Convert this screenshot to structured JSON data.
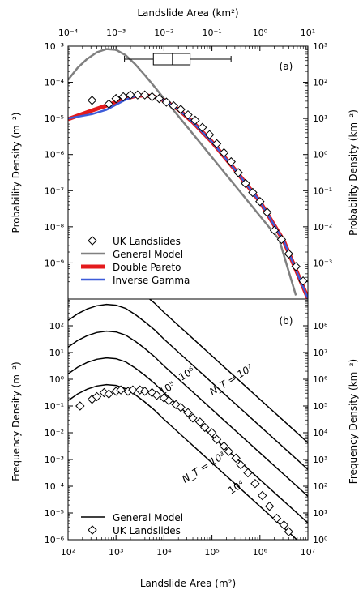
{
  "chart_data": [
    {
      "id": "a",
      "type": "line",
      "panel_label": "(a)",
      "xlabel_top": "Landslide Area (km²)",
      "ylabel_left": "Probability Density (m⁻²)",
      "ylabel_right": "Probability Density (km⁻²)",
      "x_log10_range": [
        2,
        7
      ],
      "y_log10_range": [
        -10,
        -3
      ],
      "x_top_log10_range": [
        -4,
        1
      ],
      "y_right_log10_range": [
        -4,
        3
      ],
      "x_ticks_top": [
        "10⁻⁴",
        "10⁻³",
        "10⁻²",
        "10⁻¹",
        "10⁰",
        "10¹"
      ],
      "y_ticks_left": [
        "10⁻⁹",
        "10⁻⁸",
        "10⁻⁷",
        "10⁻⁶",
        "10⁻⁵",
        "10⁻⁴",
        "10⁻³"
      ],
      "y_ticks_right": [
        "10⁻³",
        "10⁻²",
        "10⁻¹",
        "10⁰",
        "10¹",
        "10²",
        "10³"
      ],
      "boxplot_km2": {
        "whisker_low": 0.0015,
        "q1": 0.006,
        "median": 0.015,
        "q3": 0.035,
        "whisker_high": 0.25
      },
      "series": [
        {
          "name": "UK Landslides",
          "marker": "diamond",
          "x_log10": [
            2.5,
            2.85,
            3.0,
            3.15,
            3.3,
            3.45,
            3.6,
            3.75,
            3.9,
            4.05,
            4.2,
            4.35,
            4.5,
            4.65,
            4.8,
            4.95,
            5.1,
            5.25,
            5.4,
            5.55,
            5.7,
            5.85,
            6.0,
            6.15,
            6.3,
            6.45,
            6.6,
            6.75,
            6.9
          ],
          "y_log10": [
            -4.5,
            -4.6,
            -4.45,
            -4.4,
            -4.35,
            -4.35,
            -4.35,
            -4.4,
            -4.45,
            -4.55,
            -4.65,
            -4.75,
            -4.9,
            -5.05,
            -5.25,
            -5.45,
            -5.7,
            -5.95,
            -6.2,
            -6.5,
            -6.8,
            -7.05,
            -7.3,
            -7.6,
            -8.1,
            -8.35,
            -8.75,
            -9.1,
            -9.5
          ]
        },
        {
          "name": "General Model",
          "line": "gray",
          "x_log10": [
            2.0,
            2.2,
            2.4,
            2.6,
            2.8,
            3.0,
            3.2,
            3.4,
            3.6,
            3.8,
            4.0,
            4.4,
            4.8,
            5.2,
            5.6,
            6.0,
            6.4,
            6.75
          ],
          "y_log10": [
            -3.93,
            -3.6,
            -3.35,
            -3.17,
            -3.08,
            -3.1,
            -3.25,
            -3.5,
            -3.8,
            -4.12,
            -4.45,
            -5.1,
            -5.75,
            -6.4,
            -7.05,
            -7.7,
            -8.35,
            -9.9
          ]
        },
        {
          "name": "Double Pareto",
          "line": "red",
          "x_log10": [
            2.0,
            2.5,
            3.0,
            3.2,
            3.4,
            3.6,
            3.8,
            4.0,
            4.3,
            4.6,
            5.0,
            5.5,
            6.0,
            6.5,
            7.0
          ],
          "y_log10": [
            -5.02,
            -4.78,
            -4.55,
            -4.45,
            -4.38,
            -4.36,
            -4.4,
            -4.5,
            -4.75,
            -5.1,
            -5.65,
            -6.45,
            -7.3,
            -8.4,
            -9.98
          ]
        },
        {
          "name": "Inverse Gamma",
          "line": "blue",
          "x_log10": [
            2.0,
            2.5,
            2.8,
            3.0,
            3.2,
            3.4,
            3.6,
            3.8,
            4.0,
            4.3,
            4.6,
            5.0,
            5.5,
            6.0,
            6.5,
            7.0
          ],
          "y_log10": [
            -5.0,
            -4.88,
            -4.76,
            -4.62,
            -4.48,
            -4.38,
            -4.36,
            -4.4,
            -4.5,
            -4.75,
            -5.1,
            -5.65,
            -6.45,
            -7.3,
            -8.4,
            -9.98
          ]
        }
      ],
      "legend": {
        "placement": "lower-left",
        "entries": [
          "UK Landslides",
          "General Model",
          "Double Pareto",
          "Inverse Gamma"
        ]
      }
    },
    {
      "id": "b",
      "type": "line",
      "panel_label": "(b)",
      "xlabel": "Landslide Area (m²)",
      "ylabel_left": "Frequency Density (m⁻²)",
      "ylabel_right": "Frequency Density (km⁻²)",
      "x_log10_range": [
        2,
        7
      ],
      "y_log10_range": [
        -6,
        3
      ],
      "y_right_log10_range": [
        0,
        9
      ],
      "x_ticks": [
        "10²",
        "10³",
        "10⁴",
        "10⁵",
        "10⁶",
        "10⁷"
      ],
      "y_ticks_left": [
        "10⁻⁶",
        "10⁻⁵",
        "10⁻⁴",
        "10⁻³",
        "10⁻²",
        "10⁻¹",
        "10⁰",
        "10¹",
        "10²"
      ],
      "y_ticks_right": [
        "10⁰",
        "10¹",
        "10²",
        "10³",
        "10⁴",
        "10⁵",
        "10⁶",
        "10⁷",
        "10⁸"
      ],
      "general_model_log_nt": [
        3,
        4,
        5,
        6,
        7
      ],
      "general_model_shape_x_log10": [
        2.0,
        2.2,
        2.4,
        2.6,
        2.8,
        3.0,
        3.2,
        3.4,
        3.6,
        3.8,
        4.0,
        4.4,
        4.8,
        5.2,
        5.6,
        6.0,
        6.4,
        6.8,
        7.2
      ],
      "general_model_shape_y_log10": [
        -0.6,
        -0.35,
        -0.17,
        -0.05,
        0.0,
        -0.03,
        -0.15,
        -0.38,
        -0.65,
        -0.95,
        -1.3,
        -1.95,
        -2.6,
        -3.25,
        -3.9,
        -4.55,
        -5.2,
        -5.85,
        -6.5
      ],
      "curve_labels": [
        "N_T = 10³",
        "10⁴",
        "10⁵",
        "10⁶",
        "N_T = 10⁷"
      ],
      "series": [
        {
          "name": "UK Landslides",
          "marker": "diamond",
          "x_log10": [
            2.25,
            2.5,
            2.6,
            2.75,
            2.85,
            3.0,
            3.1,
            3.25,
            3.35,
            3.5,
            3.6,
            3.75,
            3.85,
            4.0,
            4.1,
            4.25,
            4.35,
            4.5,
            4.6,
            4.75,
            4.85,
            5.0,
            5.1,
            5.25,
            5.35,
            5.5,
            5.6,
            5.75,
            5.9,
            6.05,
            6.2,
            6.35,
            6.5,
            6.6
          ],
          "y_log10": [
            -1.0,
            -0.75,
            -0.65,
            -0.5,
            -0.55,
            -0.45,
            -0.4,
            -0.45,
            -0.4,
            -0.4,
            -0.45,
            -0.5,
            -0.6,
            -0.7,
            -0.8,
            -0.95,
            -1.05,
            -1.25,
            -1.45,
            -1.6,
            -1.8,
            -2.0,
            -2.25,
            -2.5,
            -2.7,
            -2.95,
            -3.2,
            -3.5,
            -3.9,
            -4.35,
            -4.75,
            -5.2,
            -5.45,
            -5.7
          ]
        }
      ],
      "legend": {
        "placement": "lower-left",
        "entries": [
          "General Model",
          "UK Landslides"
        ]
      }
    }
  ]
}
